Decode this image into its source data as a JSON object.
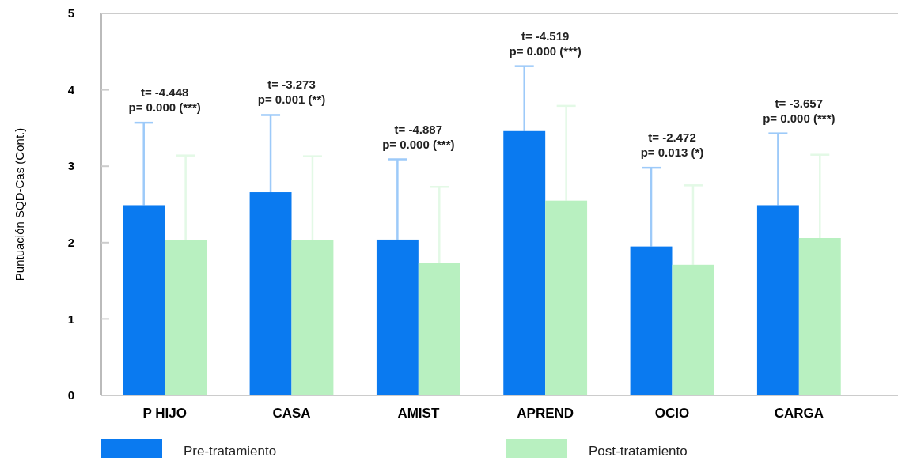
{
  "chart_data": {
    "type": "bar",
    "ylabel": "Puntuación SQD-Cas (Cont.)",
    "categories": [
      "P HIJO",
      "CASA",
      "AMIST",
      "APREND",
      "OCIO",
      "CARGA"
    ],
    "series": [
      {
        "name": "Pre-tratamiento",
        "color": "#0a7af0",
        "values": [
          2.49,
          2.66,
          2.04,
          3.46,
          1.95,
          2.49
        ],
        "errors": [
          [
            2.49,
            3.57
          ],
          [
            2.66,
            3.67
          ],
          [
            2.04,
            3.09
          ],
          [
            3.46,
            4.31
          ],
          [
            1.95,
            2.98
          ],
          [
            2.49,
            3.43
          ]
        ]
      },
      {
        "name": "Post-tratamiento",
        "color": "#b8f0c0",
        "values": [
          2.03,
          2.03,
          1.73,
          2.55,
          1.71,
          2.06
        ],
        "errors": [
          [
            2.03,
            3.14
          ],
          [
            2.03,
            3.13
          ],
          [
            1.73,
            2.73
          ],
          [
            2.55,
            3.79
          ],
          [
            1.71,
            2.75
          ],
          [
            2.06,
            3.15
          ]
        ]
      }
    ],
    "ylim": [
      0,
      5
    ],
    "yticks": [
      0,
      1,
      2,
      3,
      4,
      5
    ],
    "legend": "bottom",
    "grid": false,
    "annotations": [
      "t= -4.448\np= 0.000 (***)",
      "t= -3.273\np= 0.001 (**)",
      "t= -4.887\np= 0.000 (***)",
      "t= -4.519\np= 0.000 (***)",
      "t= -2.472\np= 0.013 (*)",
      "t= -3.657\np= 0.000 (***)"
    ]
  }
}
